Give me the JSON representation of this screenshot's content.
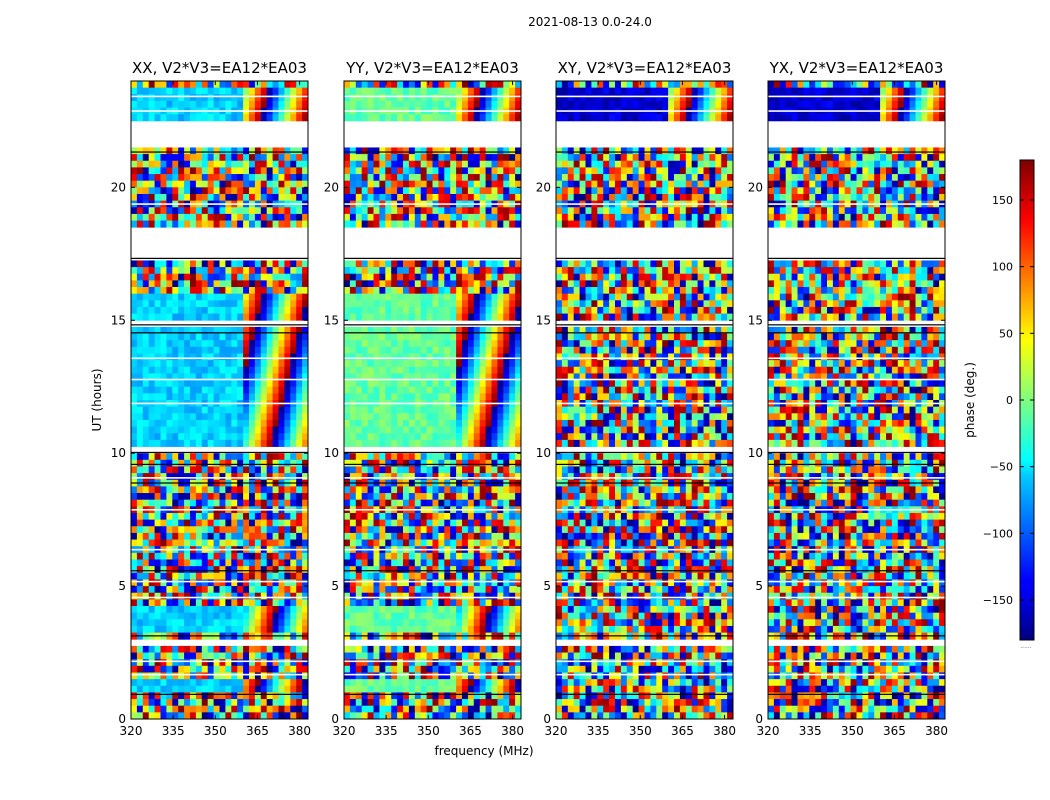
{
  "figure": {
    "suptitle": "2021-08-13 0.0-24.0",
    "colorbar_note": "......"
  },
  "chart_data": {
    "type": "heatmap",
    "xlabel": "frequency (MHz)",
    "ylabel": "UT (hours)",
    "xlim": [
      320,
      383
    ],
    "ylim": [
      0,
      24
    ],
    "xticks": [
      320,
      335,
      350,
      365,
      380
    ],
    "yticks": [
      0,
      5,
      10,
      15,
      20
    ],
    "panels": [
      {
        "id": "xx",
        "title": "XX, V2*V3=EA12*EA03",
        "base_phase": -60,
        "coherent_ranges": [
          [
            21.4,
            23.8
          ],
          [
            15.1,
            16.1
          ],
          [
            10.3,
            14.7
          ],
          [
            3.2,
            4.2
          ],
          [
            1.0,
            1.4
          ]
        ]
      },
      {
        "id": "yy",
        "title": "YY, V2*V3=EA12*EA03",
        "base_phase": -10,
        "coherent_ranges": [
          [
            21.4,
            23.8
          ],
          [
            15.1,
            16.1
          ],
          [
            10.3,
            14.7
          ],
          [
            3.2,
            4.2
          ],
          [
            1.0,
            1.4
          ]
        ]
      },
      {
        "id": "xy",
        "title": "XY, V2*V3=EA12*EA03",
        "base_phase": -150,
        "coherent_ranges": [
          [
            21.4,
            23.8
          ]
        ]
      },
      {
        "id": "yx",
        "title": "YX, V2*V3=EA12*EA03",
        "base_phase": -150,
        "coherent_ranges": [
          [
            21.4,
            23.8
          ]
        ]
      }
    ],
    "flagged_ut_ranges": [
      [
        21.4,
        22.6
      ],
      [
        17.3,
        18.6
      ],
      [
        14.8,
        15.1
      ],
      [
        10.1,
        10.3
      ],
      [
        2.7,
        3.1
      ]
    ],
    "colorbar": {
      "label": "phase (deg.)",
      "vmin": -180,
      "vmax": 180,
      "ticks": [
        -150,
        -100,
        -50,
        0,
        50,
        100,
        150
      ],
      "colormap": "jet"
    }
  }
}
